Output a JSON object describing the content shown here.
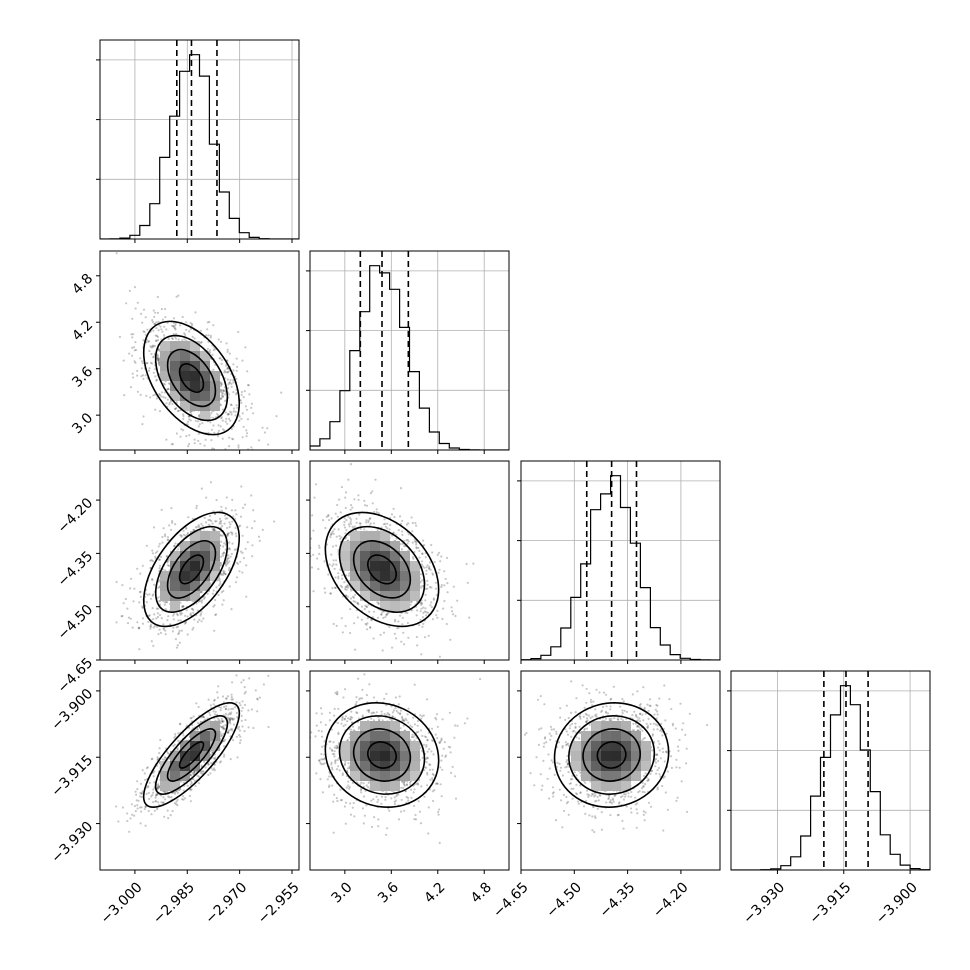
{
  "chart_data": {
    "type": "corner",
    "params": [
      {
        "ticks": [
          -3.0,
          -2.985,
          -2.97,
          -2.955
        ],
        "tick_labels": [
          "−3.000",
          "−2.985",
          "−2.970",
          "−2.955"
        ],
        "range": [
          -3.01,
          -2.953
        ],
        "median": -2.9838,
        "q16": -2.988,
        "q84": -2.9765,
        "sigma": 0.0058
      },
      {
        "ticks": [
          3.0,
          3.6,
          4.2,
          4.8
        ],
        "tick_labels": [
          "3.0",
          "3.6",
          "4.2",
          "4.8"
        ],
        "range": [
          2.55,
          5.12
        ],
        "median": 3.48,
        "q16": 3.2,
        "q84": 3.82,
        "sigma": 0.31
      },
      {
        "ticks": [
          -4.65,
          -4.5,
          -4.35,
          -4.2
        ],
        "tick_labels": [
          "−4.65",
          "−4.50",
          "−4.35",
          "−4.20"
        ],
        "range": [
          -4.65,
          -4.09
        ],
        "median": -4.395,
        "q16": -4.465,
        "q84": -4.325,
        "sigma": 0.068
      },
      {
        "ticks": [
          -3.93,
          -3.915,
          -3.9
        ],
        "tick_labels": [
          "−3.930",
          "−3.915",
          "−3.900"
        ],
        "range": [
          -3.9405,
          -3.8955
        ],
        "median": -3.9145,
        "q16": -3.9195,
        "q84": -3.9095,
        "sigma": 0.005
      }
    ],
    "correlations": [
      [
        1,
        -0.45,
        0.55,
        0.8
      ],
      [
        -0.45,
        1,
        -0.35,
        -0.1
      ],
      [
        0.55,
        -0.35,
        1,
        0.05
      ],
      [
        0.8,
        -0.1,
        0.05,
        1
      ]
    ],
    "contour_levels": [
      "0.5σ",
      "1σ",
      "1.5σ",
      "2σ"
    ],
    "quantiles": [
      0.16,
      0.5,
      0.84
    ],
    "histogram_bins": 20,
    "grid": true,
    "colors": {
      "line": "#000000",
      "grid": "#b0b0b0",
      "scatter": "#000000",
      "density_max": "#000000"
    }
  }
}
